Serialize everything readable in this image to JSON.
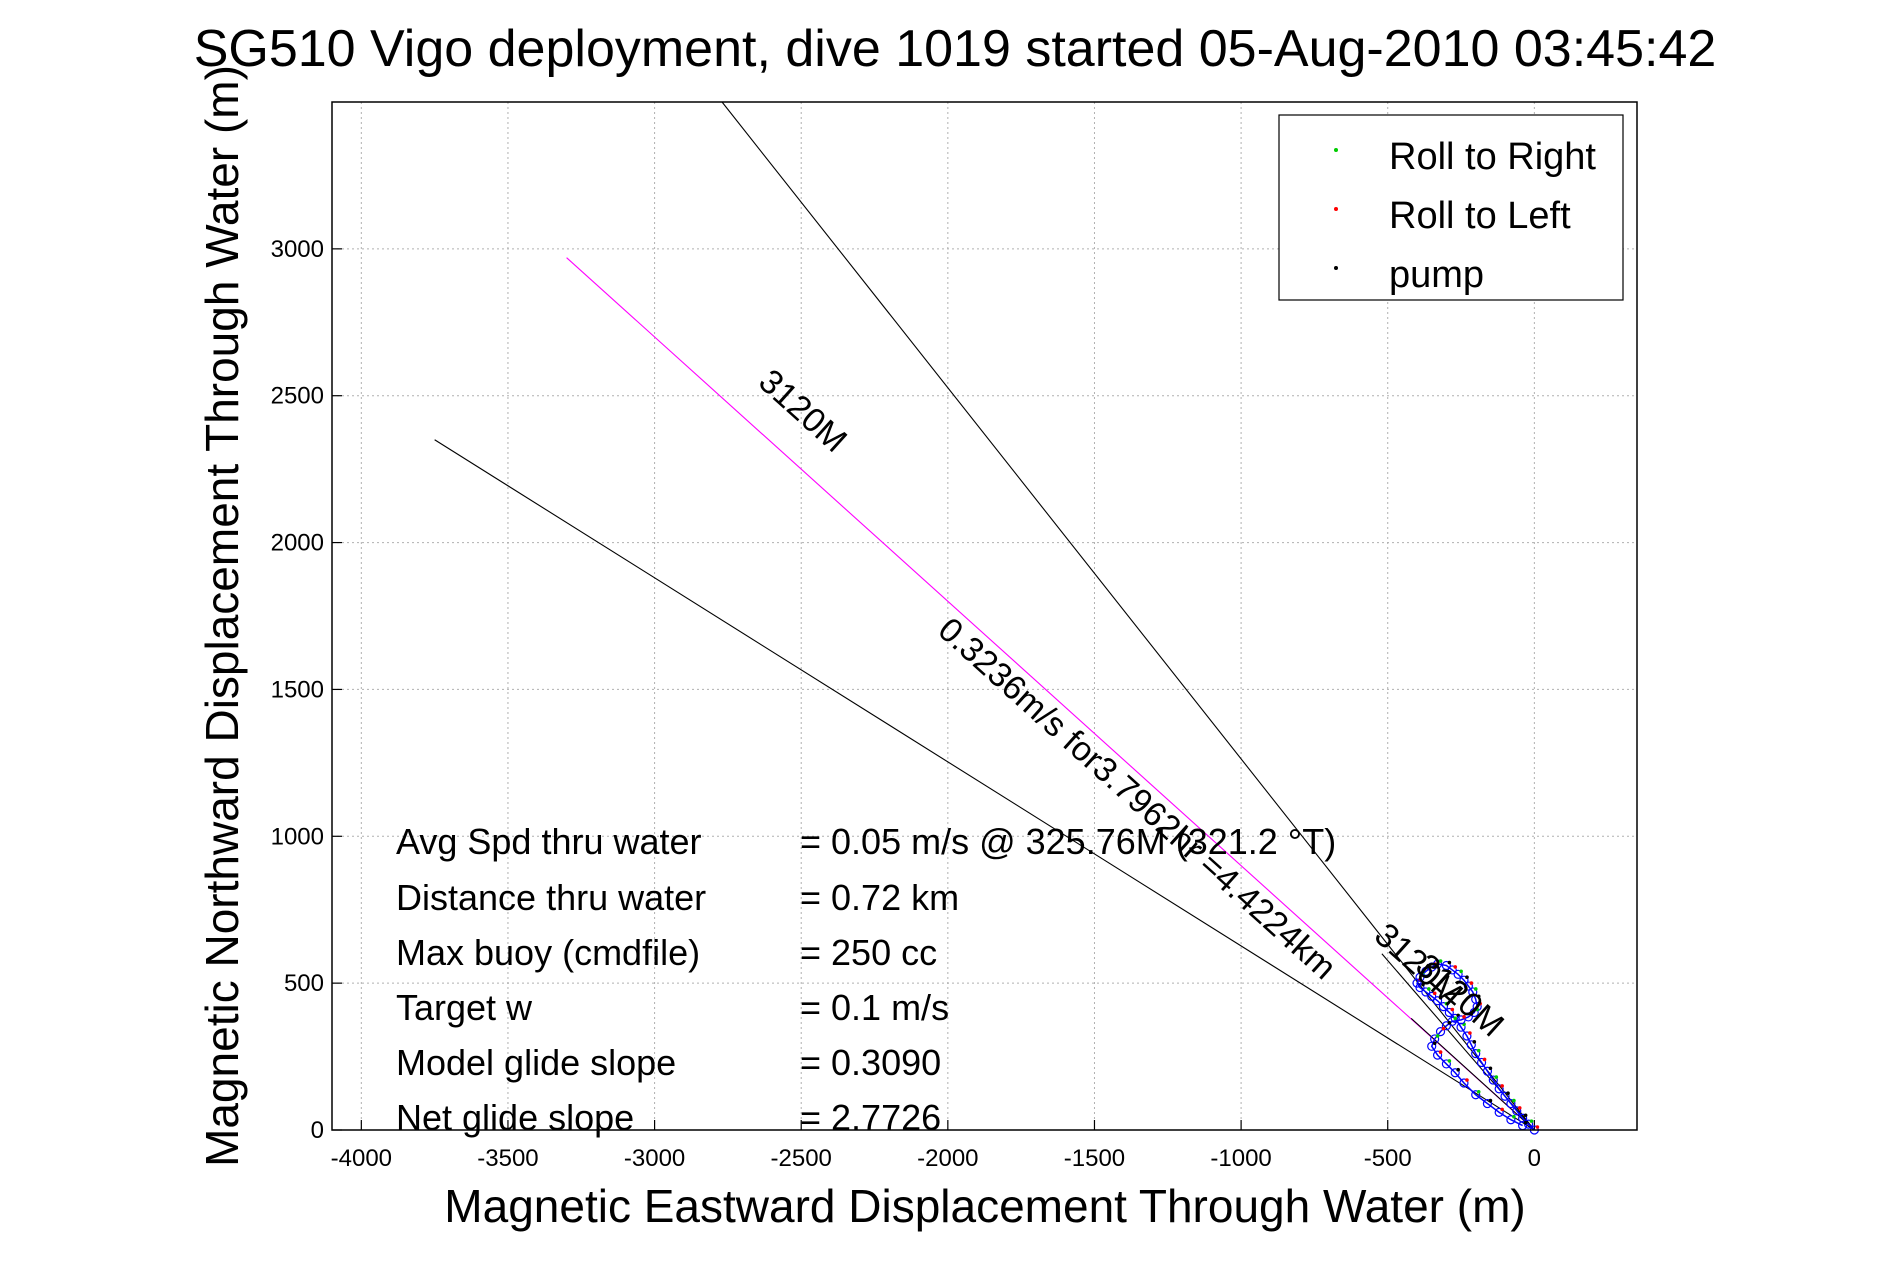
{
  "chart_data": {
    "type": "scatter",
    "title": "SG510 Vigo deployment, dive 1019 started 05-Aug-2010 03:45:42",
    "xlabel": "Magnetic Eastward Displacement Through Water (m)",
    "ylabel": "Magnetic Northward Displacement Through Water (m)",
    "xlim": [
      -4100,
      350
    ],
    "ylim": [
      0,
      3500
    ],
    "xticks": [
      -4000,
      -3500,
      -3000,
      -2500,
      -2000,
      -1500,
      -1000,
      -500,
      0
    ],
    "yticks": [
      0,
      500,
      1000,
      1500,
      2000,
      2500,
      3000
    ],
    "grid": true,
    "legend_position": "top-right",
    "legend": [
      {
        "label": "Roll to Right",
        "color": "#00cc00"
      },
      {
        "label": "Roll to Left",
        "color": "#ff0000"
      },
      {
        "label": "pump",
        "color": "#000000"
      }
    ],
    "lines": [
      {
        "color": "#000000",
        "points": [
          [
            -2770,
            3500
          ],
          [
            0,
            0
          ]
        ]
      },
      {
        "color": "#000000",
        "points": [
          [
            -3750,
            2350
          ],
          [
            0,
            0
          ]
        ]
      },
      {
        "color": "#ff00ff",
        "points": [
          [
            -3300,
            2970
          ],
          [
            0,
            0
          ]
        ]
      },
      {
        "color": "#000000",
        "points": [
          [
            -520,
            600
          ],
          [
            0,
            0
          ]
        ]
      },
      {
        "color": "#000000",
        "points": [
          [
            -420,
            380
          ],
          [
            0,
            0
          ]
        ]
      }
    ],
    "annotations": [
      {
        "text": "3120M",
        "x": -2520,
        "y": 2420,
        "angle": 42
      },
      {
        "text": "0.3236m/s for3.7962hr =4.4224km",
        "x": -1380,
        "y": 1100,
        "angle": 42
      },
      {
        "text": "3120M",
        "x": -420,
        "y": 535,
        "angle": 42
      },
      {
        "text": "3120M",
        "x": -280,
        "y": 430,
        "angle": 42
      }
    ],
    "stats": [
      {
        "label": "Avg Spd thru water",
        "value": "=  0.05 m/s @ 325.76M (321.2 °T)"
      },
      {
        "label": "Distance thru water",
        "value": "=  0.72 km"
      },
      {
        "label": "Max buoy (cmdfile)",
        "value": "= 250 cc"
      },
      {
        "label": "Target w",
        "value": "= 0.1 m/s"
      },
      {
        "label": "Model glide slope",
        "value": "= 0.3090"
      },
      {
        "label": "Net glide slope",
        "value": "= 2.7726"
      }
    ],
    "track": {
      "points": [
        [
          0,
          0
        ],
        [
          -20,
          20
        ],
        [
          -40,
          40
        ],
        [
          -60,
          65
        ],
        [
          -80,
          90
        ],
        [
          -100,
          115
        ],
        [
          -120,
          140
        ],
        [
          -140,
          170
        ],
        [
          -160,
          200
        ],
        [
          -180,
          230
        ],
        [
          -200,
          260
        ],
        [
          -215,
          290
        ],
        [
          -230,
          320
        ],
        [
          -250,
          350
        ],
        [
          -270,
          380
        ],
        [
          -290,
          400
        ],
        [
          -310,
          420
        ],
        [
          -330,
          440
        ],
        [
          -350,
          455
        ],
        [
          -370,
          470
        ],
        [
          -390,
          485
        ],
        [
          -400,
          500
        ],
        [
          -390,
          520
        ],
        [
          -370,
          540
        ],
        [
          -350,
          555
        ],
        [
          -330,
          565
        ],
        [
          -300,
          560
        ],
        [
          -280,
          545
        ],
        [
          -260,
          530
        ],
        [
          -240,
          510
        ],
        [
          -225,
          490
        ],
        [
          -210,
          470
        ],
        [
          -200,
          445
        ],
        [
          -195,
          420
        ],
        [
          -205,
          400
        ],
        [
          -225,
          385
        ],
        [
          -250,
          375
        ],
        [
          -280,
          370
        ],
        [
          -300,
          355
        ],
        [
          -320,
          335
        ],
        [
          -340,
          310
        ],
        [
          -350,
          285
        ],
        [
          -330,
          255
        ],
        [
          -300,
          225
        ],
        [
          -270,
          195
        ],
        [
          -240,
          160
        ],
        [
          -200,
          120
        ],
        [
          -160,
          90
        ],
        [
          -120,
          60
        ],
        [
          -80,
          35
        ],
        [
          -40,
          15
        ]
      ]
    },
    "colors": {
      "roll_right": "#00cc00",
      "roll_left": "#ff0000",
      "pump": "#000000",
      "track": "#0000ff",
      "heading_line": "#ff00ff",
      "grid": "#b0b0b0"
    }
  }
}
